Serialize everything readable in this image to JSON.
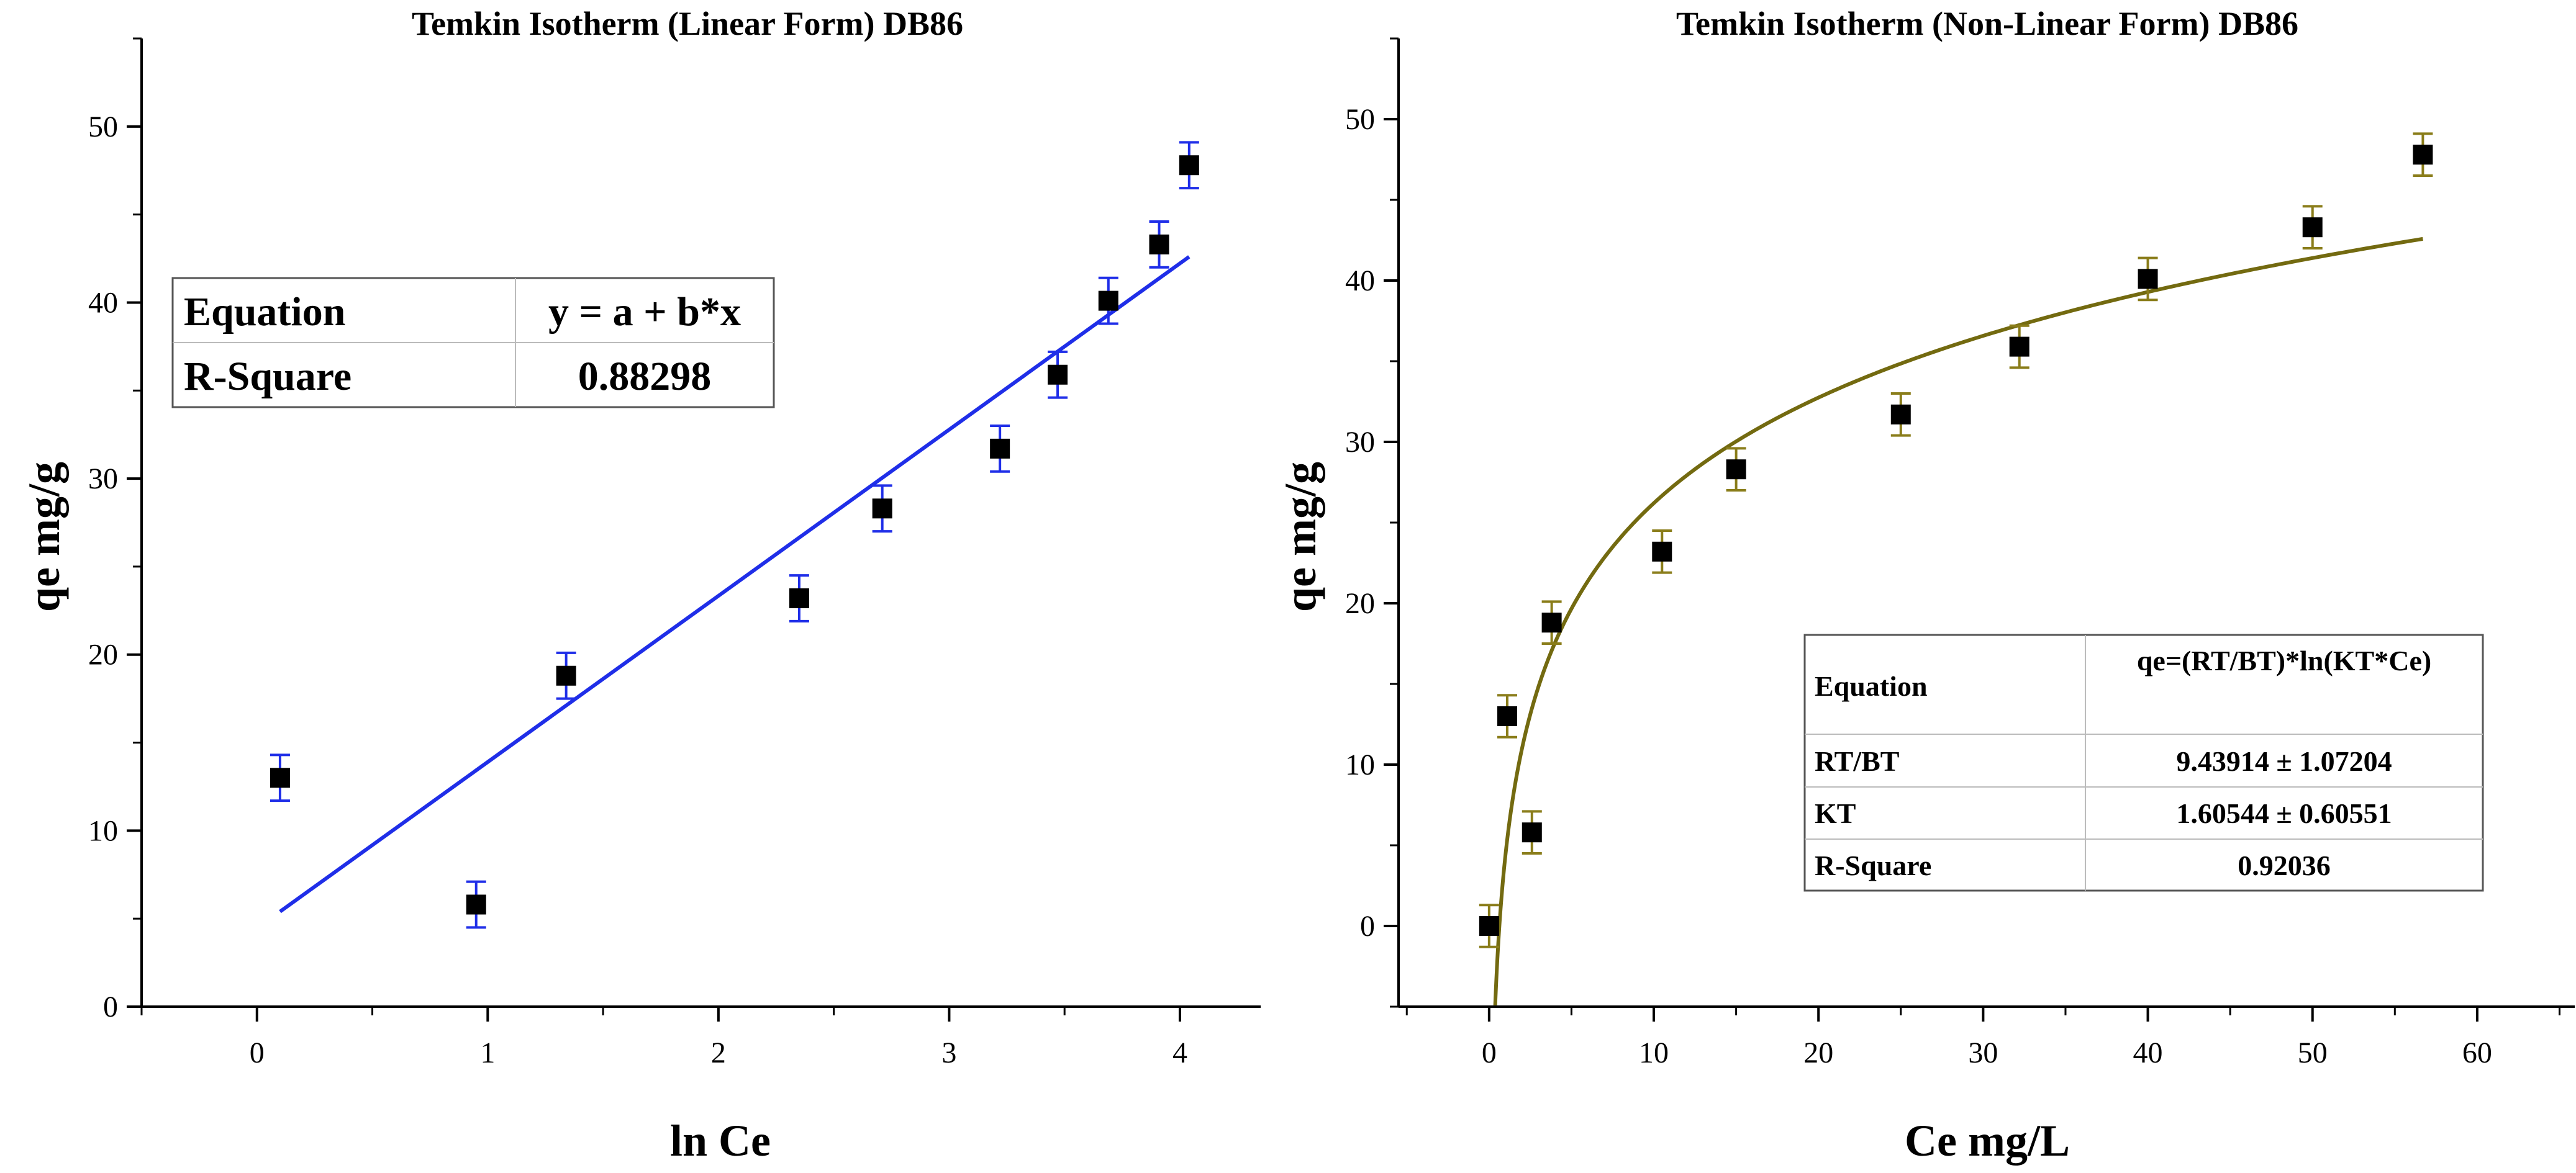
{
  "chart_data": [
    {
      "type": "scatter",
      "title": "Temkin Isotherm (Linear Form) DB86",
      "xlabel": "ln Ce",
      "ylabel": "qe mg/g",
      "xlim": [
        -0.5,
        4.35
      ],
      "ylim": [
        0,
        55
      ],
      "xticks": [
        0,
        1,
        2,
        3,
        4
      ],
      "yticks": [
        0,
        10,
        20,
        30,
        40,
        50
      ],
      "xtick_labels": [
        "0",
        "1",
        "2",
        "3",
        "4"
      ],
      "ytick_labels": [
        "0",
        "10",
        "20",
        "30",
        "40",
        "50"
      ],
      "grid": false,
      "marker_color": "#000000",
      "errorbar_color": "#1f2ee8",
      "fit_color": "#1f2ee8",
      "points": [
        {
          "x": 0.1,
          "y": 13.0,
          "err": 1.3
        },
        {
          "x": 0.95,
          "y": 5.8,
          "err": 1.3
        },
        {
          "x": 1.34,
          "y": 18.8,
          "err": 1.3
        },
        {
          "x": 2.35,
          "y": 23.2,
          "err": 1.3
        },
        {
          "x": 2.71,
          "y": 28.3,
          "err": 1.3
        },
        {
          "x": 3.22,
          "y": 31.7,
          "err": 1.3
        },
        {
          "x": 3.47,
          "y": 35.9,
          "err": 1.3
        },
        {
          "x": 3.69,
          "y": 40.1,
          "err": 1.3
        },
        {
          "x": 3.91,
          "y": 43.3,
          "err": 1.3
        },
        {
          "x": 4.04,
          "y": 47.8,
          "err": 1.3
        }
      ],
      "fit": {
        "x": [
          0.1,
          4.04
        ],
        "y": [
          5.4,
          42.6
        ]
      },
      "table": {
        "rows": [
          [
            "Equation",
            "y = a + b*x"
          ],
          [
            "R-Square",
            "0.88298"
          ]
        ]
      }
    },
    {
      "type": "scatter",
      "title": "Temkin Isotherm (Non-Linear Form) DB86",
      "xlabel": "Ce mg/L",
      "ylabel": "qe mg/g",
      "xlim": [
        -5.5,
        66
      ],
      "ylim": [
        -5,
        55
      ],
      "xticks": [
        0,
        10,
        20,
        30,
        40,
        50,
        60
      ],
      "yticks": [
        0,
        10,
        20,
        30,
        40,
        50
      ],
      "xtick_labels": [
        "0",
        "10",
        "20",
        "30",
        "40",
        "50",
        "60"
      ],
      "ytick_labels": [
        "0",
        "10",
        "20",
        "30",
        "40",
        "50"
      ],
      "grid": false,
      "marker_color": "#000000",
      "errorbar_color": "#8a7d1a",
      "fit_color": "#736a10",
      "points": [
        {
          "x": 0.0,
          "y": 0.0,
          "err": 1.3
        },
        {
          "x": 1.1,
          "y": 13.0,
          "err": 1.3
        },
        {
          "x": 2.6,
          "y": 5.8,
          "err": 1.3
        },
        {
          "x": 3.8,
          "y": 18.8,
          "err": 1.3
        },
        {
          "x": 10.5,
          "y": 23.2,
          "err": 1.3
        },
        {
          "x": 15.0,
          "y": 28.3,
          "err": 1.3
        },
        {
          "x": 25.0,
          "y": 31.7,
          "err": 1.3
        },
        {
          "x": 32.2,
          "y": 35.9,
          "err": 1.3
        },
        {
          "x": 40.0,
          "y": 40.1,
          "err": 1.3
        },
        {
          "x": 50.0,
          "y": 43.3,
          "err": 1.3
        },
        {
          "x": 56.7,
          "y": 47.8,
          "err": 1.3
        }
      ],
      "fit": {
        "model": "qe=(RT/BT)*ln(KT*Ce)",
        "RT_BT": 9.43914,
        "KT": 1.60544,
        "x_range": [
          0.37,
          56.7
        ]
      },
      "table": {
        "rows": [
          [
            "Equation",
            "qe=(RT/BT)*ln(KT*Ce)"
          ],
          [
            "RT/BT",
            "9.43914 ± 1.07204"
          ],
          [
            "KT",
            "1.60544 ± 0.60551"
          ],
          [
            "R-Square",
            "0.92036"
          ]
        ]
      }
    }
  ]
}
